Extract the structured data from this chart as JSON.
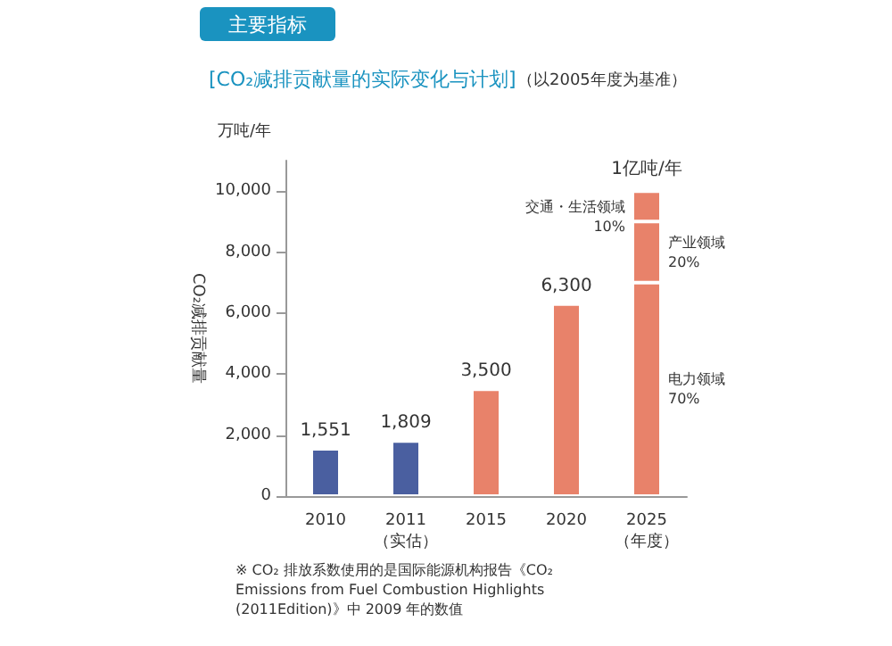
{
  "chart_data": {
    "type": "bar",
    "title": "[CO₂减排贡献量的实际变化与计划]",
    "subtitle": "（以2005年度为基准）",
    "ylabel": "CO₂减排贡献量",
    "categories": [
      "2010",
      "2011\n（实估）",
      "2015",
      "2020",
      "2025\n（年度）"
    ],
    "stacked": true,
    "series": [
      {
        "colors": [
          "#4a5fa0",
          "#4a5fa0",
          "#e8826a",
          "#e8826a",
          "#e8826a"
        ],
        "values": [
          1551,
          1809,
          3500,
          6300,
          7000
        ],
        "value_labels": [
          "1,551",
          "1,809",
          "3,500",
          "6,300",
          null
        ]
      },
      {
        "color": "#e8826a",
        "values": [
          null,
          null,
          null,
          null,
          2000
        ]
      },
      {
        "color": "#e8826a",
        "values": [
          null,
          null,
          null,
          null,
          1000
        ]
      }
    ],
    "ylim": [
      0,
      11000
    ],
    "yticks": [
      0,
      {
        "value": 2000,
        "label": "2,000"
      },
      {
        "value": 4000,
        "label": "4,000"
      },
      {
        "value": 6000,
        "label": "6,000"
      },
      {
        "value": 8000,
        "label": "8,000"
      },
      {
        "value": 10000,
        "label": "10,000"
      }
    ],
    "grid": false,
    "annotations": [
      "主要指标",
      "万吨/年",
      "1亿吨/年",
      "交通・生活领域\n10%",
      "产业领域\n20%",
      "电力领域\n70%",
      "※ CO₂ 排放系数使用的是国际能源机构报告《CO₂ Emissions from Fuel Combustion Highlights (2011Edition)》中 2009 年的数值"
    ]
  }
}
